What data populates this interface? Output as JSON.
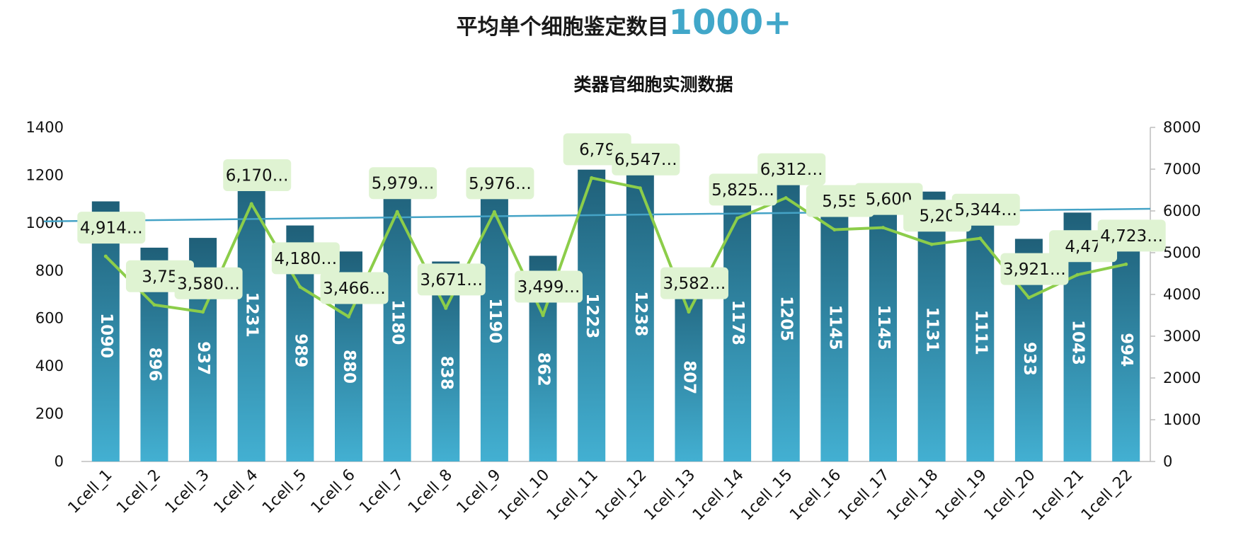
{
  "headline": {
    "text": "平均单个细胞鉴定数目",
    "highlight": "1000+",
    "highlight_color": "#41a7c9"
  },
  "chart_data": {
    "type": "bar+line",
    "title": "类器官细胞实测数据",
    "categories": [
      "1cell_1",
      "1cell_2",
      "1cell_3",
      "1cell_4",
      "1cell_5",
      "1cell_6",
      "1cell_7",
      "1cell_8",
      "1cell_9",
      "1cell_10",
      "1cell_11",
      "1cell_12",
      "1cell_13",
      "1cell_14",
      "1cell_15",
      "1cell_16",
      "1cell_17",
      "1cell_18",
      "1cell_19",
      "1cell_20",
      "1cell_21",
      "1cell_22"
    ],
    "bar_series": {
      "name": "单个细胞鉴定数目",
      "axis": "left",
      "values": [
        1090,
        896,
        937,
        1231,
        989,
        880,
        1180,
        838,
        1190,
        862,
        1223,
        1238,
        807,
        1178,
        1205,
        1145,
        1145,
        1131,
        1111,
        933,
        1043,
        994
      ],
      "color_top": "#1f5f78",
      "color_bottom": "#43b0d2"
    },
    "line_series": {
      "name": "实测数据",
      "axis": "right",
      "values": [
        4914,
        3750,
        3580,
        6170,
        4180,
        3466,
        5979,
        3671,
        5976,
        3499,
        6790,
        6547,
        3582,
        5825,
        6312,
        5550,
        5600,
        5200,
        5344,
        3921,
        4470,
        4723
      ],
      "labels": [
        "4,914…",
        "3,75",
        "3,580…",
        "6,170…",
        "4,180…",
        "3,466…",
        "5,979…",
        "3,671…",
        "5,976…",
        "3,499…",
        "6,79",
        "6,547…",
        "3,582…",
        "5,825…",
        "6,312…",
        "5,55",
        "5,600",
        "5,20",
        "5,344…",
        "3,921…",
        "4,47",
        "4,723…"
      ],
      "color": "#8ccd4a",
      "label_bg": "#dff3d2"
    },
    "trendline": {
      "axis": "right",
      "start": 5750,
      "end": 6050,
      "color": "#45a3c6"
    },
    "y_left": {
      "min": 0,
      "max": 1400,
      "ticks": [
        0,
        200,
        400,
        600,
        800,
        1000,
        1200,
        1400
      ]
    },
    "y_right": {
      "min": 0,
      "max": 8000,
      "ticks": [
        0,
        1000,
        2000,
        3000,
        4000,
        5000,
        6000,
        7000,
        8000
      ]
    }
  }
}
